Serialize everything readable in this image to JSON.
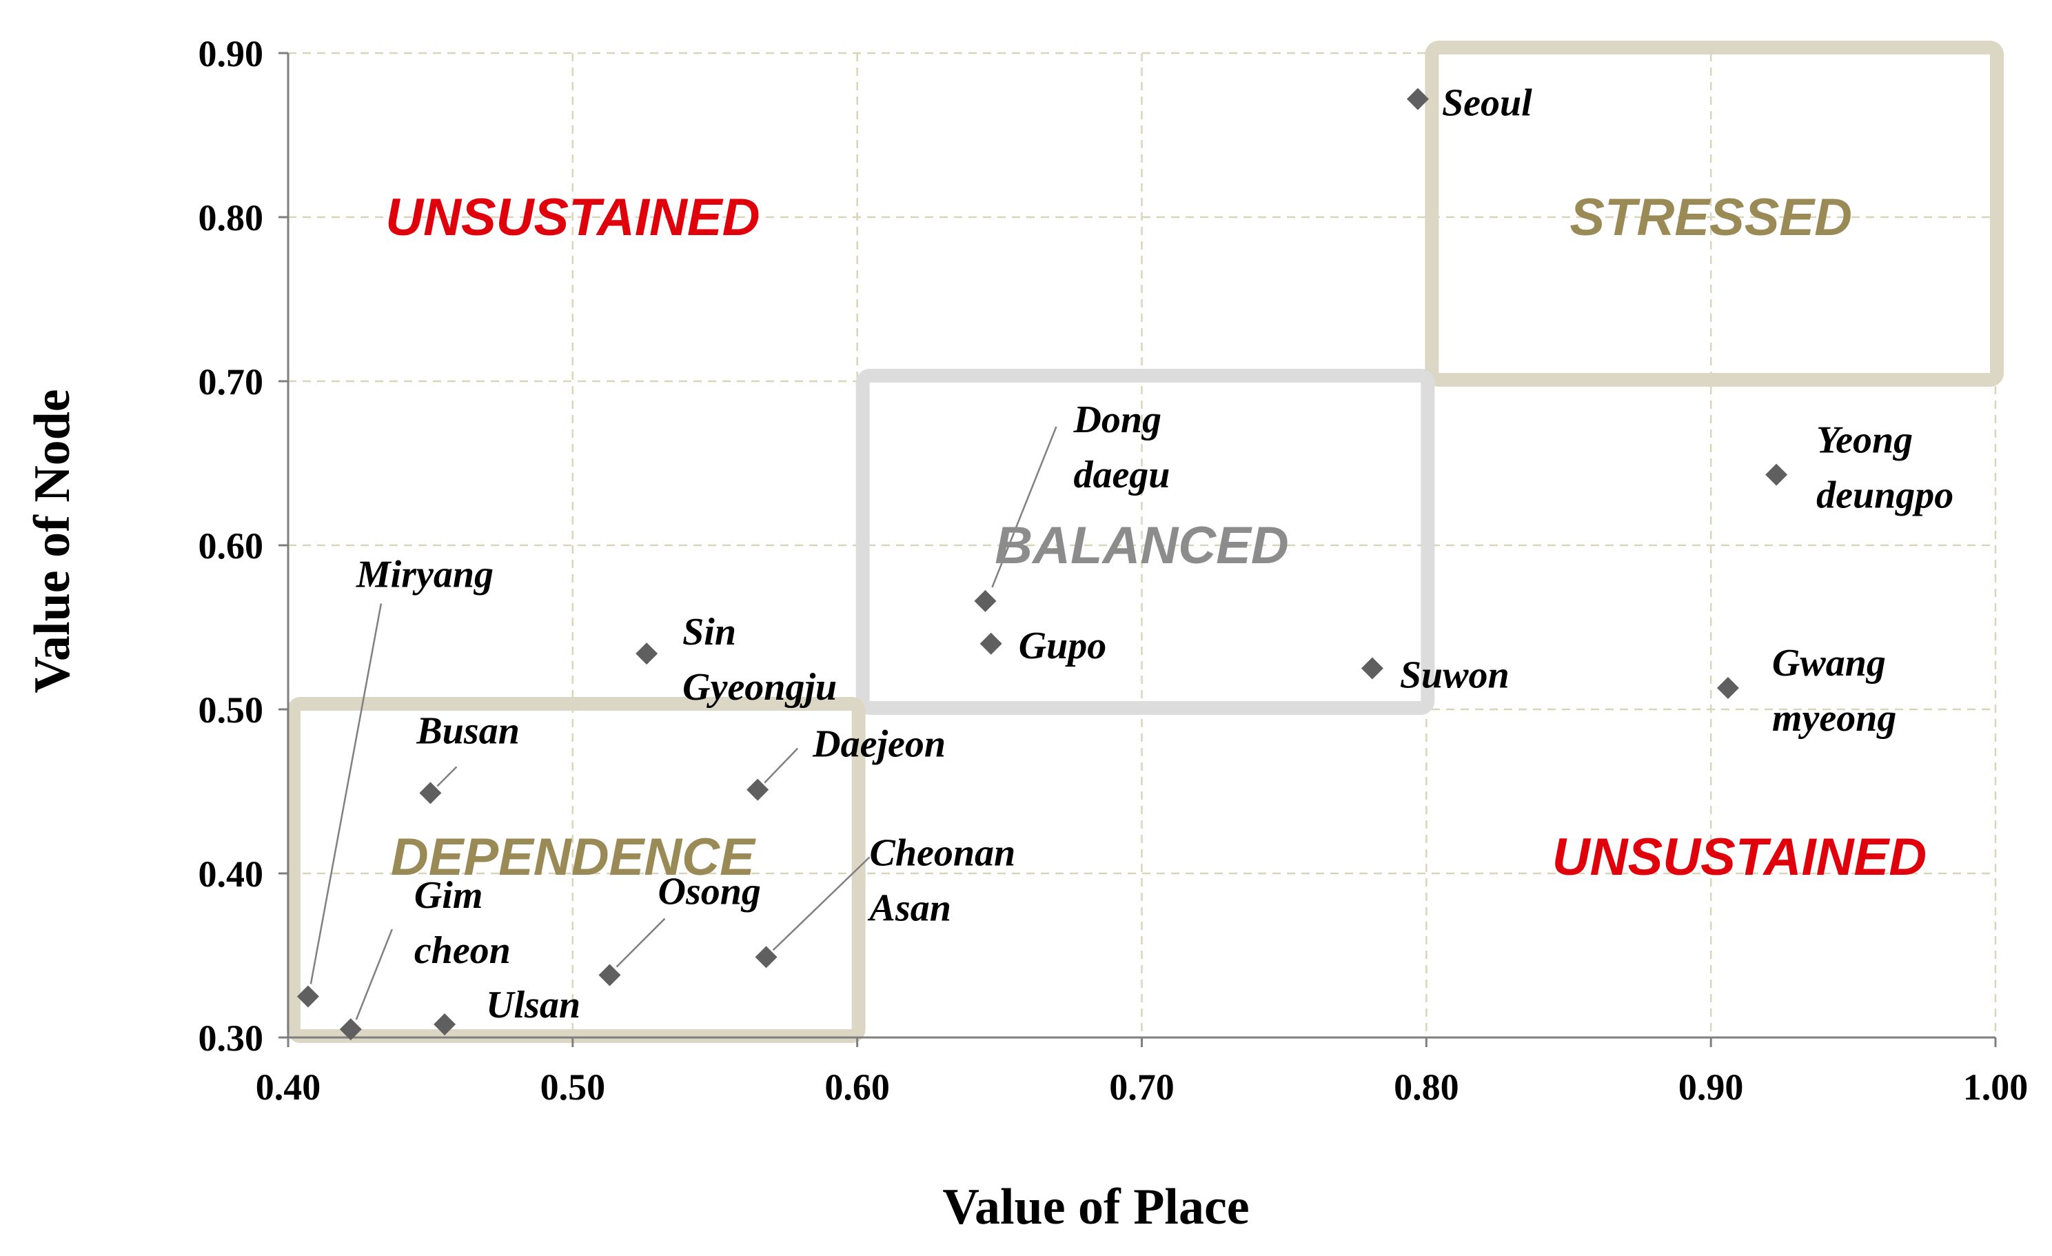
{
  "chart_data": {
    "type": "scatter",
    "title": "",
    "xlabel": "Value of Place",
    "ylabel": "Value of Node",
    "xlim": [
      0.4,
      1.0
    ],
    "ylim": [
      0.3,
      0.9
    ],
    "xticks": [
      "0.40",
      "0.50",
      "0.60",
      "0.70",
      "0.80",
      "0.90",
      "1.00"
    ],
    "yticks": [
      "0.30",
      "0.40",
      "0.50",
      "0.60",
      "0.70",
      "0.80",
      "0.90"
    ],
    "grid": true,
    "marker": "diamond",
    "marker_color": "#5f5f5f",
    "points": [
      {
        "label": [
          "Seoul"
        ],
        "x": 0.797,
        "y": 0.872
      },
      {
        "label": [
          "Dong",
          "daegu"
        ],
        "x": 0.645,
        "y": 0.566
      },
      {
        "label": [
          "Gupo"
        ],
        "x": 0.647,
        "y": 0.54
      },
      {
        "label": [
          "Yeong",
          "deungpo"
        ],
        "x": 0.923,
        "y": 0.643
      },
      {
        "label": [
          "Suwon"
        ],
        "x": 0.781,
        "y": 0.525
      },
      {
        "label": [
          "Gwang",
          "myeong"
        ],
        "x": 0.906,
        "y": 0.513
      },
      {
        "label": [
          "Miryang"
        ],
        "x": 0.407,
        "y": 0.325
      },
      {
        "label": [
          "Sin",
          "Gyeongju"
        ],
        "x": 0.526,
        "y": 0.534
      },
      {
        "label": [
          "Busan"
        ],
        "x": 0.45,
        "y": 0.449
      },
      {
        "label": [
          "Daejeon"
        ],
        "x": 0.565,
        "y": 0.451
      },
      {
        "label": [
          "Gim",
          "cheon"
        ],
        "x": 0.422,
        "y": 0.305
      },
      {
        "label": [
          "Ulsan"
        ],
        "x": 0.455,
        "y": 0.308
      },
      {
        "label": [
          "Osong"
        ],
        "x": 0.513,
        "y": 0.338
      },
      {
        "label": [
          "Cheonan",
          "Asan"
        ],
        "x": 0.568,
        "y": 0.349
      }
    ],
    "regions": [
      {
        "label": "STRESSED",
        "x0": 0.8,
        "x1": 1.0,
        "y0": 0.7,
        "y1": 0.9,
        "stroke": "#dcd6c4",
        "text_color": "#9a8a56"
      },
      {
        "label": "BALANCED",
        "x0": 0.6,
        "x1": 0.8,
        "y0": 0.5,
        "y1": 0.7,
        "stroke": "#dcdcdc",
        "text_color": "#8c8c8c"
      },
      {
        "label": "DEPENDENCE",
        "x0": 0.4,
        "x1": 0.6,
        "y0": 0.3,
        "y1": 0.5,
        "stroke": "#dcd6c4",
        "text_color": "#9a8a56"
      }
    ],
    "annotations": [
      {
        "text": "UNSUSTAINED",
        "x": 0.5,
        "y": 0.8,
        "color": "#e0000b"
      },
      {
        "text": "UNSUSTAINED",
        "x": 0.91,
        "y": 0.41,
        "color": "#e0000b"
      }
    ]
  }
}
